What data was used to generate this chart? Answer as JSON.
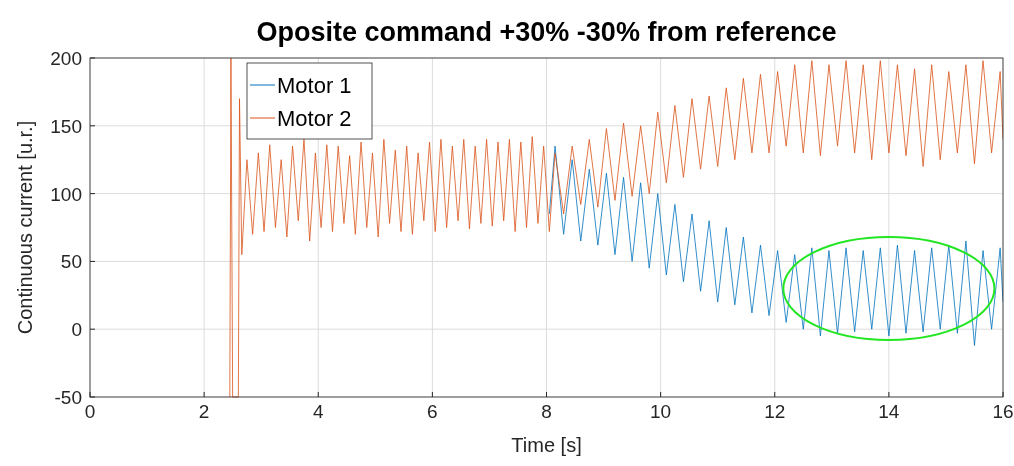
{
  "chart_data": {
    "type": "line",
    "title": "Oposite command +30% -30% from reference",
    "xlabel": "Time [s]",
    "ylabel": "Continuous current [u.r.]",
    "xlim": [
      0,
      16
    ],
    "ylim": [
      -50,
      200
    ],
    "xticks": [
      0,
      2,
      4,
      6,
      8,
      10,
      12,
      14,
      16
    ],
    "yticks": [
      -50,
      0,
      50,
      100,
      150,
      200
    ],
    "grid": true,
    "legend": "top left",
    "series": [
      {
        "name": "Motor 1",
        "color": "#0072bd",
        "x": [
          8.05,
          8.15,
          8.3,
          8.45,
          8.6,
          8.75,
          8.9,
          9.05,
          9.2,
          9.35,
          9.5,
          9.65,
          9.8,
          9.95,
          10.1,
          10.25,
          10.4,
          10.55,
          10.7,
          10.85,
          11,
          11.15,
          11.3,
          11.45,
          11.6,
          11.75,
          11.9,
          12.05,
          12.2,
          12.35,
          12.5,
          12.65,
          12.8,
          12.95,
          13.1,
          13.25,
          13.4,
          13.55,
          13.7,
          13.85,
          14,
          14.15,
          14.3,
          14.45,
          14.6,
          14.75,
          14.9,
          15.05,
          15.2,
          15.35,
          15.5,
          15.65,
          15.8,
          15.95,
          16
        ],
        "values": [
          85,
          135,
          70,
          125,
          65,
          118,
          62,
          115,
          55,
          112,
          50,
          108,
          45,
          100,
          40,
          92,
          35,
          85,
          28,
          80,
          20,
          75,
          18,
          68,
          12,
          62,
          10,
          58,
          5,
          55,
          0,
          60,
          -5,
          58,
          -3,
          60,
          -2,
          58,
          0,
          60,
          -5,
          62,
          -3,
          58,
          -2,
          60,
          0,
          62,
          -3,
          65,
          -12,
          58,
          0,
          60,
          20
        ]
      },
      {
        "name": "Motor 2",
        "color": "#d95319",
        "x": [
          2.45,
          2.47,
          2.5,
          2.6,
          2.62,
          2.66,
          2.75,
          2.85,
          2.95,
          3.05,
          3.15,
          3.25,
          3.35,
          3.45,
          3.55,
          3.65,
          3.75,
          3.85,
          3.95,
          4.05,
          4.15,
          4.25,
          4.35,
          4.45,
          4.55,
          4.65,
          4.75,
          4.85,
          4.95,
          5.05,
          5.15,
          5.25,
          5.35,
          5.45,
          5.55,
          5.65,
          5.75,
          5.85,
          5.95,
          6.05,
          6.15,
          6.25,
          6.35,
          6.45,
          6.55,
          6.65,
          6.75,
          6.85,
          6.95,
          7.05,
          7.15,
          7.25,
          7.35,
          7.45,
          7.55,
          7.65,
          7.75,
          7.85,
          7.95,
          8.05,
          8.15,
          8.3,
          8.45,
          8.6,
          8.75,
          8.9,
          9.05,
          9.2,
          9.35,
          9.5,
          9.65,
          9.8,
          9.95,
          10.1,
          10.25,
          10.4,
          10.55,
          10.7,
          10.85,
          11,
          11.15,
          11.3,
          11.45,
          11.6,
          11.75,
          11.9,
          12.05,
          12.2,
          12.35,
          12.5,
          12.65,
          12.8,
          12.95,
          13.1,
          13.25,
          13.4,
          13.55,
          13.7,
          13.85,
          14,
          14.15,
          14.3,
          14.45,
          14.6,
          14.75,
          14.9,
          15.05,
          15.2,
          15.35,
          15.5,
          15.65,
          15.8,
          15.95,
          16
        ],
        "values": [
          -50,
          200,
          -50,
          -50,
          170,
          55,
          125,
          70,
          130,
          72,
          136,
          75,
          125,
          68,
          135,
          80,
          140,
          65,
          130,
          75,
          136,
          72,
          135,
          78,
          128,
          70,
          138,
          75,
          130,
          68,
          140,
          78,
          132,
          72,
          135,
          70,
          130,
          80,
          138,
          72,
          140,
          75,
          135,
          80,
          140,
          74,
          135,
          78,
          140,
          76,
          138,
          80,
          140,
          72,
          138,
          75,
          142,
          78,
          135,
          72,
          130,
          85,
          135,
          92,
          140,
          90,
          148,
          95,
          152,
          98,
          150,
          100,
          160,
          108,
          165,
          112,
          170,
          118,
          172,
          120,
          178,
          125,
          185,
          130,
          188,
          130,
          190,
          135,
          195,
          130,
          198,
          128,
          195,
          135,
          198,
          130,
          195,
          125,
          198,
          130,
          195,
          128,
          192,
          120,
          195,
          125,
          190,
          130,
          195,
          122,
          198,
          130,
          190,
          140
        ]
      }
    ]
  }
}
